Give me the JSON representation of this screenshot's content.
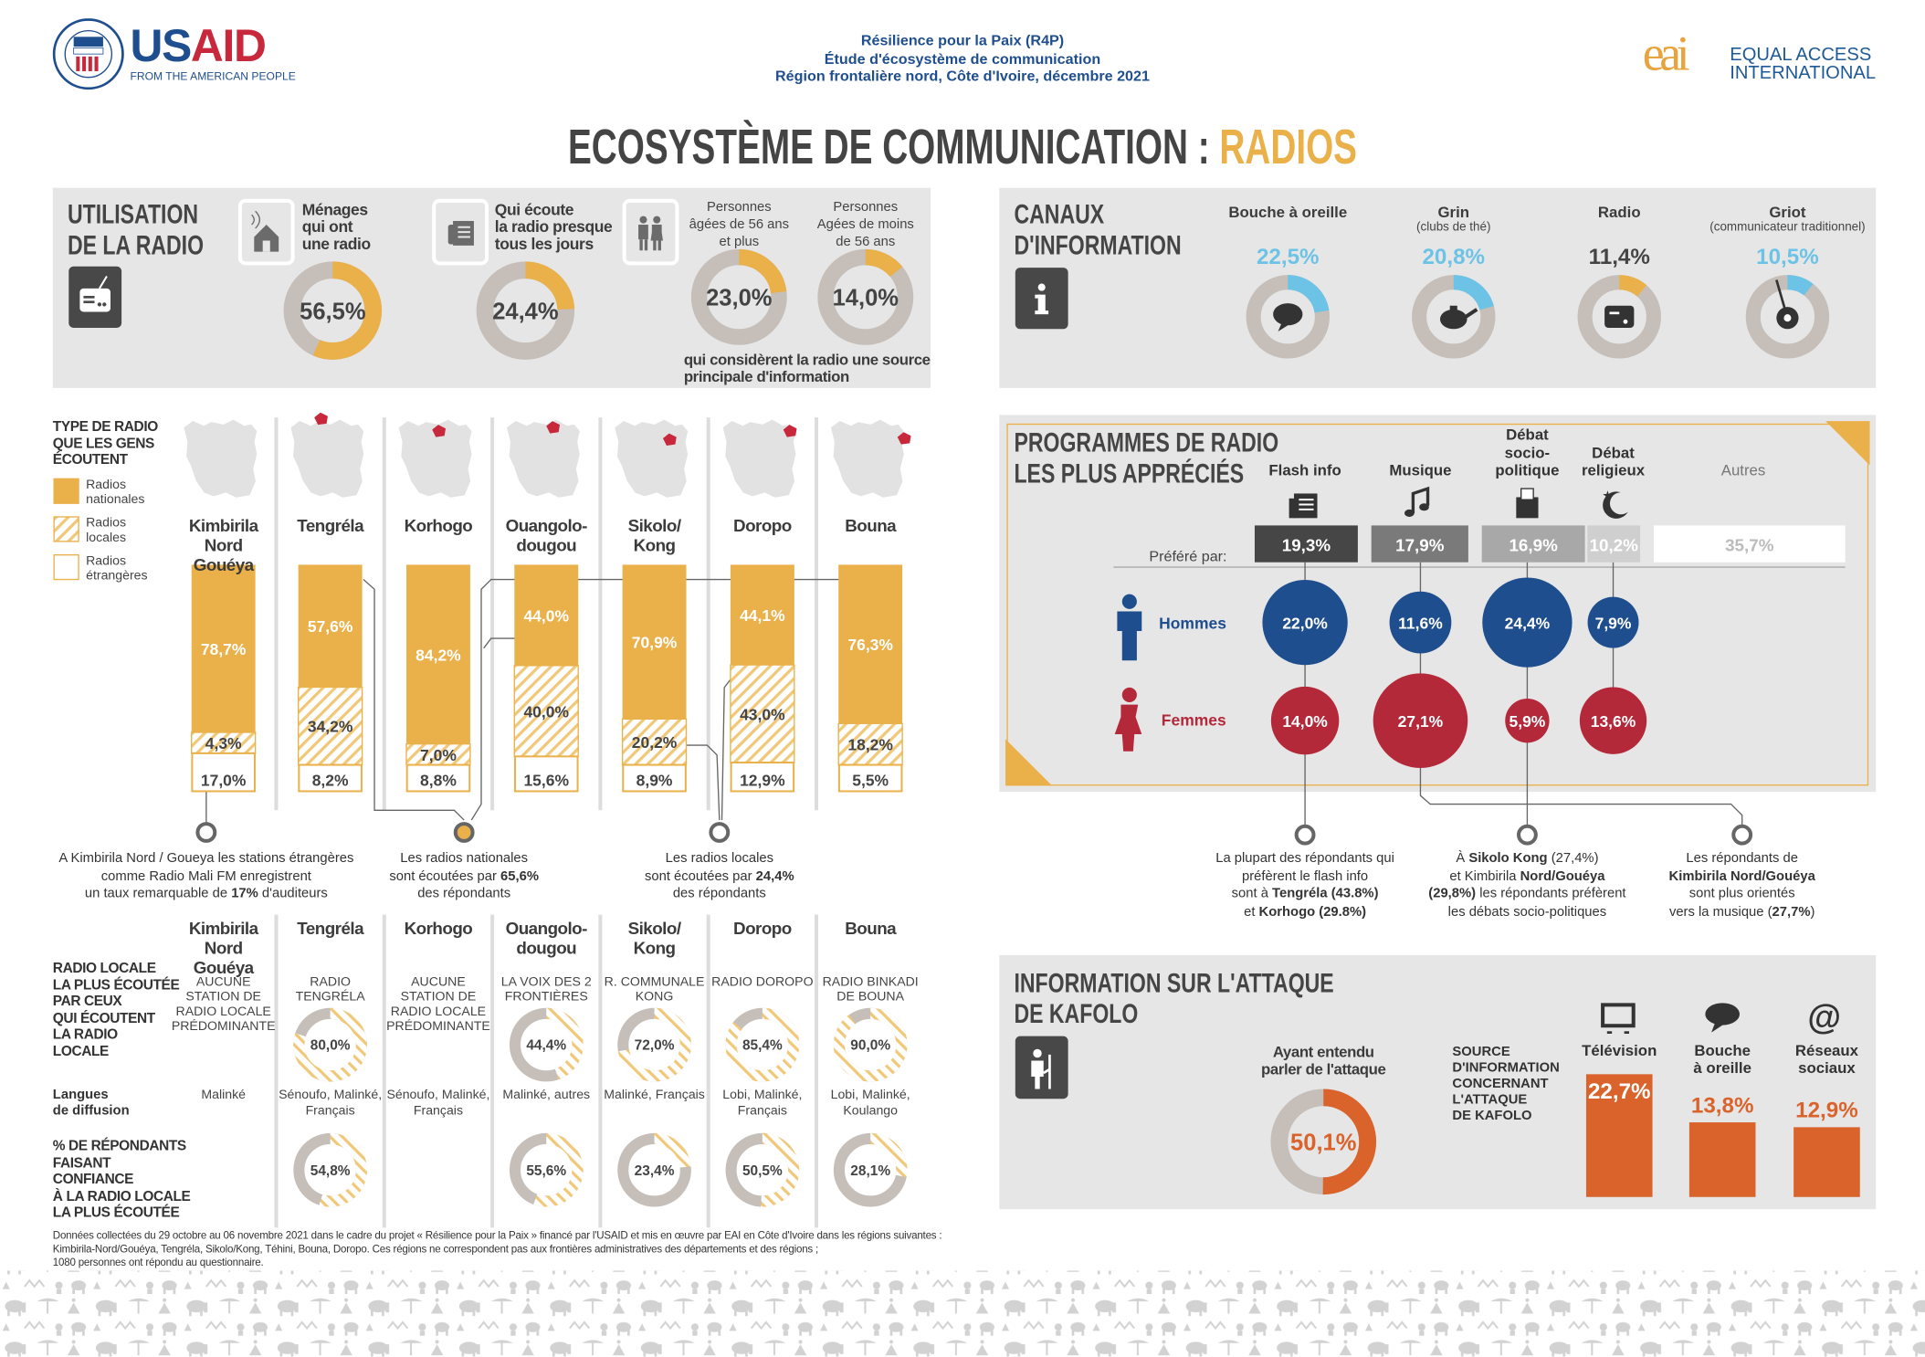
{
  "header": {
    "logo_left_part1": "US",
    "logo_left_part2": "AID",
    "logo_left_tagline": "FROM THE AMERICAN PEOPLE",
    "seal_text": "UNITED STATES AGENCY INTERNATIONAL DEVELOPMENT",
    "subtitle_lines": [
      "Résilience pour la Paix (R4P)",
      "Étude d'écosystème de communication",
      "Région frontalière nord, Côte d'Ivoire, décembre 2021"
    ],
    "logo_right_mark": "eai",
    "logo_right_line1": "EQUAL ACCESS",
    "logo_right_line2": "INTERNATIONAL"
  },
  "title": {
    "main": "ECOSYSTÈME DE COMMUNICATION :",
    "highlight": "RADIOS"
  },
  "colors": {
    "orange": "#eab04a",
    "grey_ring": "#c6bfb9",
    "panel": "#e6e6e6",
    "dark": "#464646",
    "blue": "#1f4e8f",
    "red": "#b3293a",
    "light_blue": "#6cc3e6",
    "attack_orange": "#d9632a"
  },
  "utilisation": {
    "title_l1": "UTILISATION",
    "title_l2": "DE LA RADIO",
    "household": {
      "label_lines": [
        "Ménages",
        "qui ont",
        "une radio"
      ],
      "value": "56,5%",
      "pct": 56.5
    },
    "daily": {
      "label_lines": [
        "Qui écoute",
        "la radio presque",
        "tous les jours"
      ],
      "value": "24,4%",
      "pct": 24.4
    },
    "age_groups": [
      {
        "label_lines": [
          "Personnes",
          "âgées de 56 ans",
          "et plus"
        ],
        "value": "23,0%",
        "pct": 23.0
      },
      {
        "label_lines": [
          "Personnes",
          "Agées de moins",
          "de 56 ans"
        ],
        "value": "14,0%",
        "pct": 14.0
      }
    ],
    "age_footer_lines": [
      "qui considèrent la radio une source",
      "principale d'information"
    ]
  },
  "canaux": {
    "title_l1": "CANAUX",
    "title_l2": "D'INFORMATION",
    "items": [
      {
        "label": "Bouche à oreille",
        "sublabel": "",
        "value": "22,5%",
        "pct": 22.5,
        "icon": "speech-bubble-icon",
        "highlight": true
      },
      {
        "label": "Grin",
        "sublabel": "(clubs de thé)",
        "value": "20,8%",
        "pct": 20.8,
        "icon": "teapot-icon",
        "highlight": true
      },
      {
        "label": "Radio",
        "sublabel": "",
        "value": "11,4%",
        "pct": 11.4,
        "icon": "radio-icon",
        "highlight": false
      },
      {
        "label": "Griot",
        "sublabel": "(communicateur traditionnel)",
        "value": "10,5%",
        "pct": 10.5,
        "icon": "kora-icon",
        "highlight": true
      }
    ]
  },
  "radio_types": {
    "title_lines": [
      "TYPE DE RADIO",
      "QUE LES GENS",
      "ÉCOUTENT"
    ],
    "legend": [
      {
        "label_lines": [
          "Radios",
          "nationales"
        ],
        "style": "solid"
      },
      {
        "label_lines": [
          "Radios",
          "locales"
        ],
        "style": "hatched"
      },
      {
        "label_lines": [
          "Radios",
          "étrangères"
        ],
        "style": "outline"
      }
    ]
  },
  "columns": [
    {
      "name_l1": "Kimbirila Nord",
      "name_l2": "Gouéya",
      "national": {
        "pct": 78.7,
        "value": "78,7%"
      },
      "local": {
        "pct": 4.3,
        "value": "4,3%"
      },
      "foreign": {
        "pct": 17.0,
        "value": "17,0%"
      },
      "station": "AUCUNE STATION DE RADIO LOCALE PRÉDOMINANTE",
      "station_share": null,
      "languages": "Malinké",
      "confidence": null
    },
    {
      "name_l1": "Tengréla",
      "name_l2": "",
      "national": {
        "pct": 57.6,
        "value": "57,6%"
      },
      "local": {
        "pct": 34.2,
        "value": "34,2%"
      },
      "foreign": {
        "pct": 8.2,
        "value": "8,2%"
      },
      "station": "RADIO TENGRÉLA",
      "station_share": {
        "pct": 80.0,
        "value": "80,0%"
      },
      "languages": "Sénoufo, Malinké, Français",
      "confidence": {
        "pct": 54.8,
        "value": "54,8%"
      }
    },
    {
      "name_l1": "Korhogo",
      "name_l2": "",
      "national": {
        "pct": 84.2,
        "value": "84,2%"
      },
      "local": {
        "pct": 7.0,
        "value": "7,0%"
      },
      "foreign": {
        "pct": 8.8,
        "value": "8,8%"
      },
      "station": "AUCUNE STATION DE RADIO LOCALE PRÉDOMINANTE",
      "station_share": null,
      "languages": "Sénoufo, Malinké, Français",
      "confidence": null
    },
    {
      "name_l1": "Ouangolo-",
      "name_l2": "dougou",
      "national": {
        "pct": 44.0,
        "value": "44,0%"
      },
      "local": {
        "pct": 40.0,
        "value": "40,0%"
      },
      "foreign": {
        "pct": 15.6,
        "value": "15,6%"
      },
      "station": "LA VOIX DES 2 FRONTIÈRES",
      "station_share": {
        "pct": 44.4,
        "value": "44,4%"
      },
      "languages": "Malinké, autres",
      "confidence": {
        "pct": 55.6,
        "value": "55,6%"
      }
    },
    {
      "name_l1": "Sikolo/",
      "name_l2": "Kong",
      "national": {
        "pct": 70.9,
        "value": "70,9%"
      },
      "local": {
        "pct": 20.2,
        "value": "20,2%"
      },
      "foreign": {
        "pct": 8.9,
        "value": "8,9%"
      },
      "station": "R. COMMUNALE KONG",
      "station_share": {
        "pct": 72.0,
        "value": "72,0%"
      },
      "languages": "Malinké, Français",
      "confidence": {
        "pct": 23.4,
        "value": "23,4%"
      }
    },
    {
      "name_l1": "Doropo",
      "name_l2": "",
      "national": {
        "pct": 44.1,
        "value": "44,1%"
      },
      "local": {
        "pct": 43.0,
        "value": "43,0%"
      },
      "foreign": {
        "pct": 12.9,
        "value": "12,9%"
      },
      "station": "RADIO DOROPO",
      "station_share": {
        "pct": 85.4,
        "value": "85,4%"
      },
      "languages": "Lobi, Malinké, Français",
      "confidence": {
        "pct": 50.5,
        "value": "50,5%"
      }
    },
    {
      "name_l1": "Bouna",
      "name_l2": "",
      "national": {
        "pct": 76.3,
        "value": "76,3%"
      },
      "local": {
        "pct": 18.2,
        "value": "18,2%"
      },
      "foreign": {
        "pct": 5.5,
        "value": "5,5%"
      },
      "station": "RADIO BINKADI DE BOUNA",
      "station_share": {
        "pct": 90.0,
        "value": "90,0%"
      },
      "languages": "Lobi, Malinké, Koulango",
      "confidence": {
        "pct": 28.1,
        "value": "28,1%"
      }
    }
  ],
  "radio_notes": [
    [
      [
        {
          "t": "A Kimbirila Nord / Goueya les stations étrangères"
        }
      ],
      [
        {
          "t": "comme Radio Mali FM enregistrent"
        }
      ],
      [
        {
          "t": "un taux remarquable de "
        },
        {
          "t": "17%",
          "b": true
        },
        {
          "t": " d'auditeurs"
        }
      ]
    ],
    [
      [
        {
          "t": "Les radios nationales"
        }
      ],
      [
        {
          "t": "sont écoutées par "
        },
        {
          "t": "65,6%",
          "b": true
        }
      ],
      [
        {
          "t": "des répondants"
        }
      ]
    ],
    [
      [
        {
          "t": "Les radios locales"
        }
      ],
      [
        {
          "t": "sont écoutées par "
        },
        {
          "t": "24,4%",
          "b": true
        }
      ],
      [
        {
          "t": "des répondants"
        }
      ]
    ]
  ],
  "local_table": {
    "station_row_label_lines": [
      "RADIO LOCALE",
      "LA PLUS ÉCOUTÉE",
      "PAR CEUX",
      "QUI ÉCOUTENT",
      "LA RADIO",
      "LOCALE"
    ],
    "languages_row_label_lines": [
      "Langues",
      "de diffusion"
    ],
    "confidence_row_label_lines": [
      "% DE RÉPONDANTS",
      "FAISANT",
      "CONFIANCE",
      "À LA RADIO LOCALE",
      "LA PLUS ÉCOUTÉE"
    ]
  },
  "programmes": {
    "title_l1": "PROGRAMMES DE RADIO",
    "title_l2": "LES PLUS APPRÉCIÉS",
    "preferred_label": "Préféré par:",
    "men_label": "Hommes",
    "women_label": "Femmes",
    "items": [
      {
        "label_lines": [
          "Flash info"
        ],
        "icon": "newspaper-icon",
        "overall": {
          "pct": 19.3,
          "value": "19,3%"
        },
        "men": {
          "pct": 22.0,
          "value": "22,0%"
        },
        "women": {
          "pct": 14.0,
          "value": "14,0%"
        },
        "bar_color": "#464646"
      },
      {
        "label_lines": [
          "Musique"
        ],
        "icon": "music-note-icon",
        "overall": {
          "pct": 17.9,
          "value": "17,9%"
        },
        "men": {
          "pct": 11.6,
          "value": "11,6%"
        },
        "women": {
          "pct": 27.1,
          "value": "27,1%"
        },
        "bar_color": "#7a7a7a"
      },
      {
        "label_lines": [
          "Débat",
          "socio-",
          "politique"
        ],
        "icon": "ballot-box-icon",
        "overall": {
          "pct": 16.9,
          "value": "16,9%"
        },
        "men": {
          "pct": 24.4,
          "value": "24,4%"
        },
        "women": {
          "pct": 5.9,
          "value": "5,9%"
        },
        "bar_color": "#a8a8a8"
      },
      {
        "label_lines": [
          "Débat",
          "religieux"
        ],
        "icon": "crescent-star-icon",
        "overall": {
          "pct": 10.2,
          "value": "10,2%"
        },
        "men": {
          "pct": 7.9,
          "value": "7,9%"
        },
        "women": {
          "pct": 13.6,
          "value": "13,6%"
        },
        "bar_color": "#cfcfcf"
      },
      {
        "label_lines": [
          "Autres"
        ],
        "icon": "",
        "overall": {
          "pct": 35.7,
          "value": "35,7%"
        },
        "men": null,
        "women": null,
        "bar_color": "#ffffff"
      }
    ],
    "notes": [
      [
        [
          {
            "t": "La plupart des répondants qui"
          }
        ],
        [
          {
            "t": "préfèrent le flash info"
          }
        ],
        [
          {
            "t": "sont à "
          },
          {
            "t": "Tengréla",
            "b": true
          },
          {
            "t": " (43.8%)",
            "b": true
          }
        ],
        [
          {
            "t": "et "
          },
          {
            "t": "Korhogo",
            "b": true
          },
          {
            "t": " (29.8%)",
            "b": true
          }
        ]
      ],
      [
        [
          {
            "t": "À "
          },
          {
            "t": "Sikolo Kong",
            "b": true
          },
          {
            "t": " (27,4%)"
          }
        ],
        [
          {
            "t": "et Kimbirila "
          },
          {
            "t": "Nord/Gouéya",
            "b": true
          }
        ],
        [
          {
            "t": "(29,8%)",
            "b": true
          },
          {
            "t": " les répondants préfèrent"
          }
        ],
        [
          {
            "t": "les débats socio-politiques"
          }
        ]
      ],
      [
        [
          {
            "t": "Les répondants de"
          }
        ],
        [
          {
            "t": "Kimbirila Nord/Gouéya",
            "b": true
          }
        ],
        [
          {
            "t": "sont plus orientés"
          }
        ],
        [
          {
            "t": "vers la musique ("
          },
          {
            "t": "27,7%",
            "b": true
          },
          {
            "t": ")"
          }
        ]
      ]
    ]
  },
  "attack": {
    "title_l1": "INFORMATION SUR L'ATTAQUE",
    "title_l2": "DE KAFOLO",
    "heard_label_lines": [
      "Ayant entendu",
      "parler de l'attaque"
    ],
    "heard": {
      "pct": 50.1,
      "value": "50,1%"
    },
    "source_label_lines": [
      "SOURCE",
      "D'INFORMATION",
      "CONCERNANT",
      "L'ATTAQUE",
      "DE KAFOLO"
    ],
    "sources": [
      {
        "label_lines": [
          "Télévision"
        ],
        "icon": "television-icon",
        "pct": 22.7,
        "value": "22,7%"
      },
      {
        "label_lines": [
          "Bouche",
          "à oreille"
        ],
        "icon": "speech-bubble-icon",
        "pct": 13.8,
        "value": "13,8%"
      },
      {
        "label_lines": [
          "Réseaux",
          "sociaux"
        ],
        "icon": "at-sign-icon",
        "pct": 12.9,
        "value": "12,9%"
      }
    ]
  },
  "footnote_lines": [
    "Données collectées du 29 octobre au 06 novembre 2021 dans le cadre du projet « Résilience pour la Paix » financé par l'USAID et mis en œuvre par EAI en Côte d'Ivoire dans les régions suivantes :",
    "Kimbirila-Nord/Gouéya, Tengréla, Sikolo/Kong, Téhini, Bouna, Doropo. Ces régions ne correspondent pas aux frontières administratives des départements et des régions ;",
    "1080 personnes ont répondu au questionnaire."
  ]
}
